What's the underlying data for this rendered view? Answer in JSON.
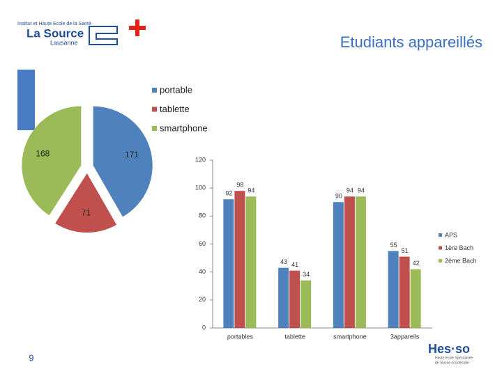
{
  "title": "Etudiants appareillés",
  "page_number": "9",
  "logo_left": {
    "line1": "Institut et Haute Ecole de la Santé",
    "line2": "La Source",
    "line3": "Lausanne"
  },
  "logo_right": {
    "name": "Hes·so",
    "line1": "Haute Ecole Spécialisée",
    "line2": "de Suisse occidentale"
  },
  "chart_data": [
    {
      "type": "pie",
      "categories": [
        "portable",
        "tablette",
        "smartphone"
      ],
      "values": [
        171,
        71,
        168
      ],
      "colors": [
        "#4f81bd",
        "#c0504d",
        "#9bbb59"
      ],
      "legend": "top-right"
    },
    {
      "type": "bar",
      "categories": [
        "portables",
        "tablette",
        "smartphone",
        "3appareils"
      ],
      "series": [
        {
          "name": "APS",
          "color": "#4f81bd",
          "values": [
            92,
            43,
            90,
            55
          ]
        },
        {
          "name": "1ère Bach",
          "color": "#c0504d",
          "values": [
            98,
            41,
            94,
            51
          ]
        },
        {
          "name": "2ème Bach",
          "color": "#9bbb59",
          "values": [
            94,
            34,
            94,
            42
          ]
        }
      ],
      "ylim": [
        0,
        120
      ],
      "yticks": [
        0,
        20,
        40,
        60,
        80,
        100,
        120
      ],
      "grid": false,
      "legend": "right"
    }
  ]
}
